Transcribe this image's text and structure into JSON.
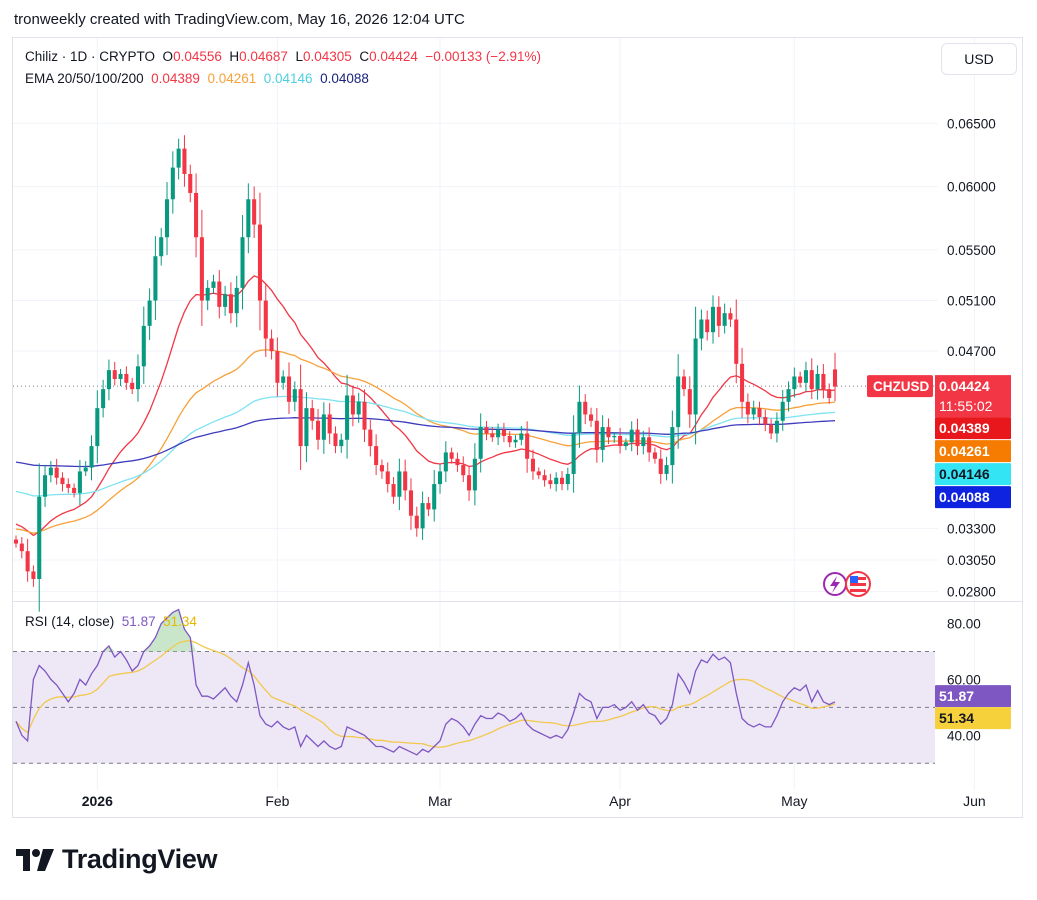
{
  "header": {
    "attribution": "tronweekly created with TradingView.com, May 16, 2026 12:04 UTC"
  },
  "legend": {
    "symbol": "Chiliz · 1D · CRYPTO",
    "o_label": "O",
    "o": "0.04556",
    "h_label": "H",
    "h": "0.04687",
    "l_label": "L",
    "l": "0.04305",
    "c_label": "C",
    "c": "0.04424",
    "change": "−0.00133 (−2.91%)",
    "ema_label": "EMA 20/50/100/200",
    "ema20": "0.04389",
    "ema50": "0.04261",
    "ema100": "0.04146",
    "ema200": "0.04088"
  },
  "currency": "USD",
  "rsi_legend": {
    "label": "RSI (14, close)",
    "rsi": "51.87",
    "ma": "51.34"
  },
  "price_labels": {
    "ticker": "CHZUSD",
    "last": "0.04424",
    "countdown": "11:55:02",
    "ema20": "0.04389",
    "ema50": "0.04261",
    "ema100": "0.04146",
    "ema200": "0.04088",
    "rsi": "51.87",
    "rsi_ma": "51.34"
  },
  "logo": "TradingView",
  "colors": {
    "up": "#089981",
    "down": "#f23645",
    "ema20": "#f23645",
    "ema50": "#f7a13b",
    "ema100": "#7ee3f0",
    "ema200": "#3f3bbd",
    "rsi": "#7e57c2",
    "rsi_ma": "#f2c94c",
    "rsi_band": "#ede7f6"
  },
  "chart_data": [
    {
      "type": "candlestick",
      "title": "Chiliz · 1D · CRYPTO",
      "y_ticks": [
        "0.06500",
        "0.06000",
        "0.05500",
        "0.05100",
        "0.04700",
        "0.03300",
        "0.03050",
        "0.02800"
      ],
      "x_ticks": [
        "2026",
        "Feb",
        "Mar",
        "Apr",
        "May",
        "Jun"
      ],
      "ylim": [
        0.0275,
        0.067
      ],
      "x_start": "2025-12-18",
      "closes": [
        0.0318,
        0.0312,
        0.0296,
        0.029,
        0.0355,
        0.0372,
        0.0378,
        0.037,
        0.0365,
        0.0362,
        0.0358,
        0.0375,
        0.0378,
        0.0395,
        0.0425,
        0.044,
        0.0455,
        0.0448,
        0.0452,
        0.0445,
        0.044,
        0.0458,
        0.049,
        0.051,
        0.0545,
        0.056,
        0.059,
        0.0615,
        0.063,
        0.061,
        0.0595,
        0.056,
        0.051,
        0.052,
        0.0525,
        0.0505,
        0.0515,
        0.05,
        0.052,
        0.056,
        0.059,
        0.057,
        0.051,
        0.048,
        0.047,
        0.0445,
        0.045,
        0.043,
        0.044,
        0.0395,
        0.0425,
        0.0415,
        0.04,
        0.042,
        0.0405,
        0.0395,
        0.04,
        0.0435,
        0.042,
        0.043,
        0.0408,
        0.0395,
        0.038,
        0.0375,
        0.0365,
        0.0355,
        0.0375,
        0.036,
        0.034,
        0.033,
        0.035,
        0.0345,
        0.0365,
        0.0375,
        0.039,
        0.0385,
        0.038,
        0.0372,
        0.036,
        0.0385,
        0.041,
        0.0405,
        0.0402,
        0.0408,
        0.0403,
        0.0398,
        0.04,
        0.0405,
        0.0385,
        0.0375,
        0.0372,
        0.0368,
        0.0365,
        0.037,
        0.0365,
        0.0373,
        0.0405,
        0.043,
        0.042,
        0.0415,
        0.0392,
        0.041,
        0.0402,
        0.0403,
        0.0395,
        0.0398,
        0.0408,
        0.0395,
        0.0402,
        0.039,
        0.0385,
        0.0373,
        0.038,
        0.041,
        0.045,
        0.044,
        0.042,
        0.048,
        0.0495,
        0.0485,
        0.0505,
        0.049,
        0.05,
        0.0495,
        0.046,
        0.043,
        0.042,
        0.0425,
        0.0418,
        0.0412,
        0.0405,
        0.0415,
        0.043,
        0.044,
        0.045,
        0.0445,
        0.0455,
        0.044,
        0.0452,
        0.044,
        0.0433,
        0.0442
      ],
      "ema": [
        {
          "name": "EMA 20",
          "last": 0.04389
        },
        {
          "name": "EMA 50",
          "last": 0.04261
        },
        {
          "name": "EMA 100",
          "last": 0.04146
        },
        {
          "name": "EMA 200",
          "last": 0.04088
        }
      ],
      "last": {
        "open": 0.04556,
        "high": 0.04687,
        "low": 0.04305,
        "close": 0.04424,
        "change": -0.00133,
        "change_pct": -2.91
      }
    },
    {
      "type": "line",
      "title": "RSI (14, close)",
      "y_ticks": [
        "80.00",
        "60.00",
        "40.00"
      ],
      "ylim": [
        24,
        87
      ],
      "band": [
        30,
        70
      ],
      "series": [
        {
          "name": "RSI",
          "last": 51.87
        },
        {
          "name": "RSI MA",
          "last": 51.34
        }
      ],
      "rsi": [
        45,
        40,
        38,
        60,
        65,
        63,
        60,
        58,
        55,
        52,
        55,
        60,
        58,
        62,
        65,
        70,
        72,
        68,
        70,
        67,
        63,
        65,
        70,
        72,
        75,
        80,
        82,
        84,
        85,
        78,
        75,
        58,
        54,
        54,
        53,
        55,
        57,
        54,
        52,
        58,
        66,
        58,
        47,
        44,
        43,
        45,
        43,
        42,
        43,
        36,
        40,
        38,
        36,
        38,
        36,
        35,
        36,
        43,
        42,
        41,
        40,
        38,
        36,
        36,
        35,
        34,
        36,
        35,
        34,
        33,
        35,
        34,
        36,
        38,
        44,
        46,
        45,
        43,
        40,
        44,
        47,
        46,
        46,
        48,
        47,
        45,
        46,
        48,
        44,
        42,
        41,
        40,
        39,
        40,
        39,
        42,
        48,
        55,
        53,
        52,
        46,
        50,
        50,
        51,
        49,
        50,
        52,
        49,
        51,
        48,
        47,
        44,
        46,
        51,
        62,
        59,
        55,
        63,
        67,
        66,
        69,
        67,
        68,
        66,
        55,
        46,
        44,
        43,
        44,
        43,
        43,
        47,
        52,
        55,
        57,
        56,
        58,
        52,
        56,
        52,
        51,
        52
      ]
    }
  ]
}
